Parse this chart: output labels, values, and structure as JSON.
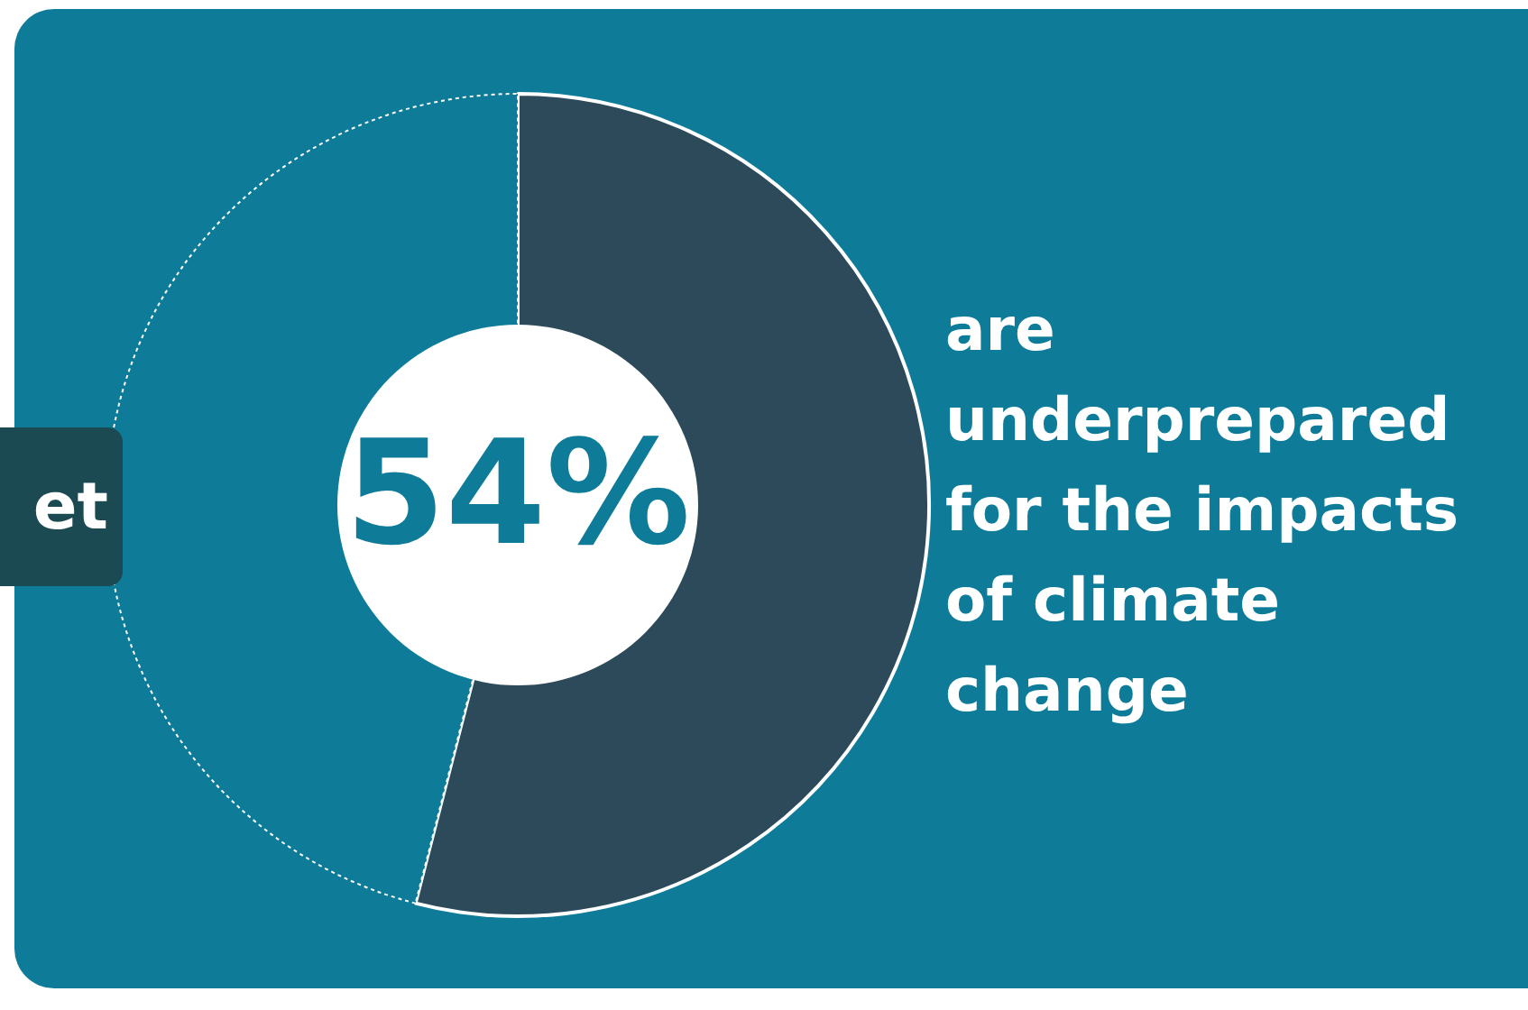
{
  "chart_data": {
    "type": "donut",
    "categories": [
      null,
      null
    ],
    "values": [
      54,
      46
    ],
    "colors": [
      "#2c4a5a",
      "#0e7c99"
    ],
    "value_labels": [
      "54%",
      null
    ],
    "annotations": [
      "are underprepared for the impacts of climate change",
      "et"
    ],
    "legend": false
  }
}
